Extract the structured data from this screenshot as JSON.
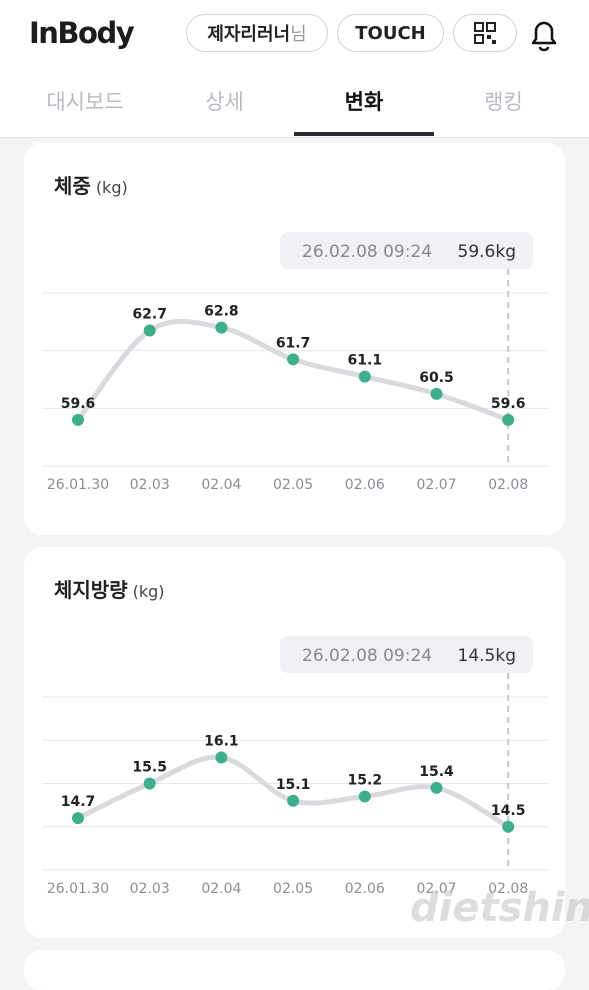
{
  "header": {
    "logo": "InBody",
    "user": "제자리러너",
    "user_suffix": "님",
    "touch": "TOUCH"
  },
  "tabs": [
    "대시보드",
    "상세",
    "변화",
    "랭킹"
  ],
  "active_tab": 2,
  "chart_data": [
    {
      "type": "line",
      "title": "체중",
      "unit": "(kg)",
      "tooltip": {
        "date": "26.02.08 09:24",
        "value": "59.6kg"
      },
      "categories": [
        "26.01.30",
        "02.03",
        "02.04",
        "02.05",
        "02.06",
        "02.07",
        "02.08"
      ],
      "values": [
        59.6,
        62.7,
        62.8,
        61.7,
        61.1,
        60.5,
        59.6
      ],
      "color": "#d9d9de",
      "point_color": "#3fae8c",
      "ylim": [
        58,
        64
      ],
      "yticks": [
        58,
        60,
        62,
        64
      ],
      "grid": true
    },
    {
      "type": "line",
      "title": "체지방량",
      "unit": "(kg)",
      "tooltip": {
        "date": "26.02.08 09:24",
        "value": "14.5kg"
      },
      "categories": [
        "26.01.30",
        "02.03",
        "02.04",
        "02.05",
        "02.06",
        "02.07",
        "02.08"
      ],
      "values": [
        14.7,
        15.5,
        16.1,
        15.1,
        15.2,
        15.4,
        14.5
      ],
      "color": "#d9d9de",
      "point_color": "#3fae8c",
      "ylim": [
        13.5,
        17.5
      ],
      "yticks": [
        13.5,
        14.5,
        15.5,
        16.5,
        17.5
      ],
      "grid": true
    }
  ],
  "watermark": "dietshin.com"
}
